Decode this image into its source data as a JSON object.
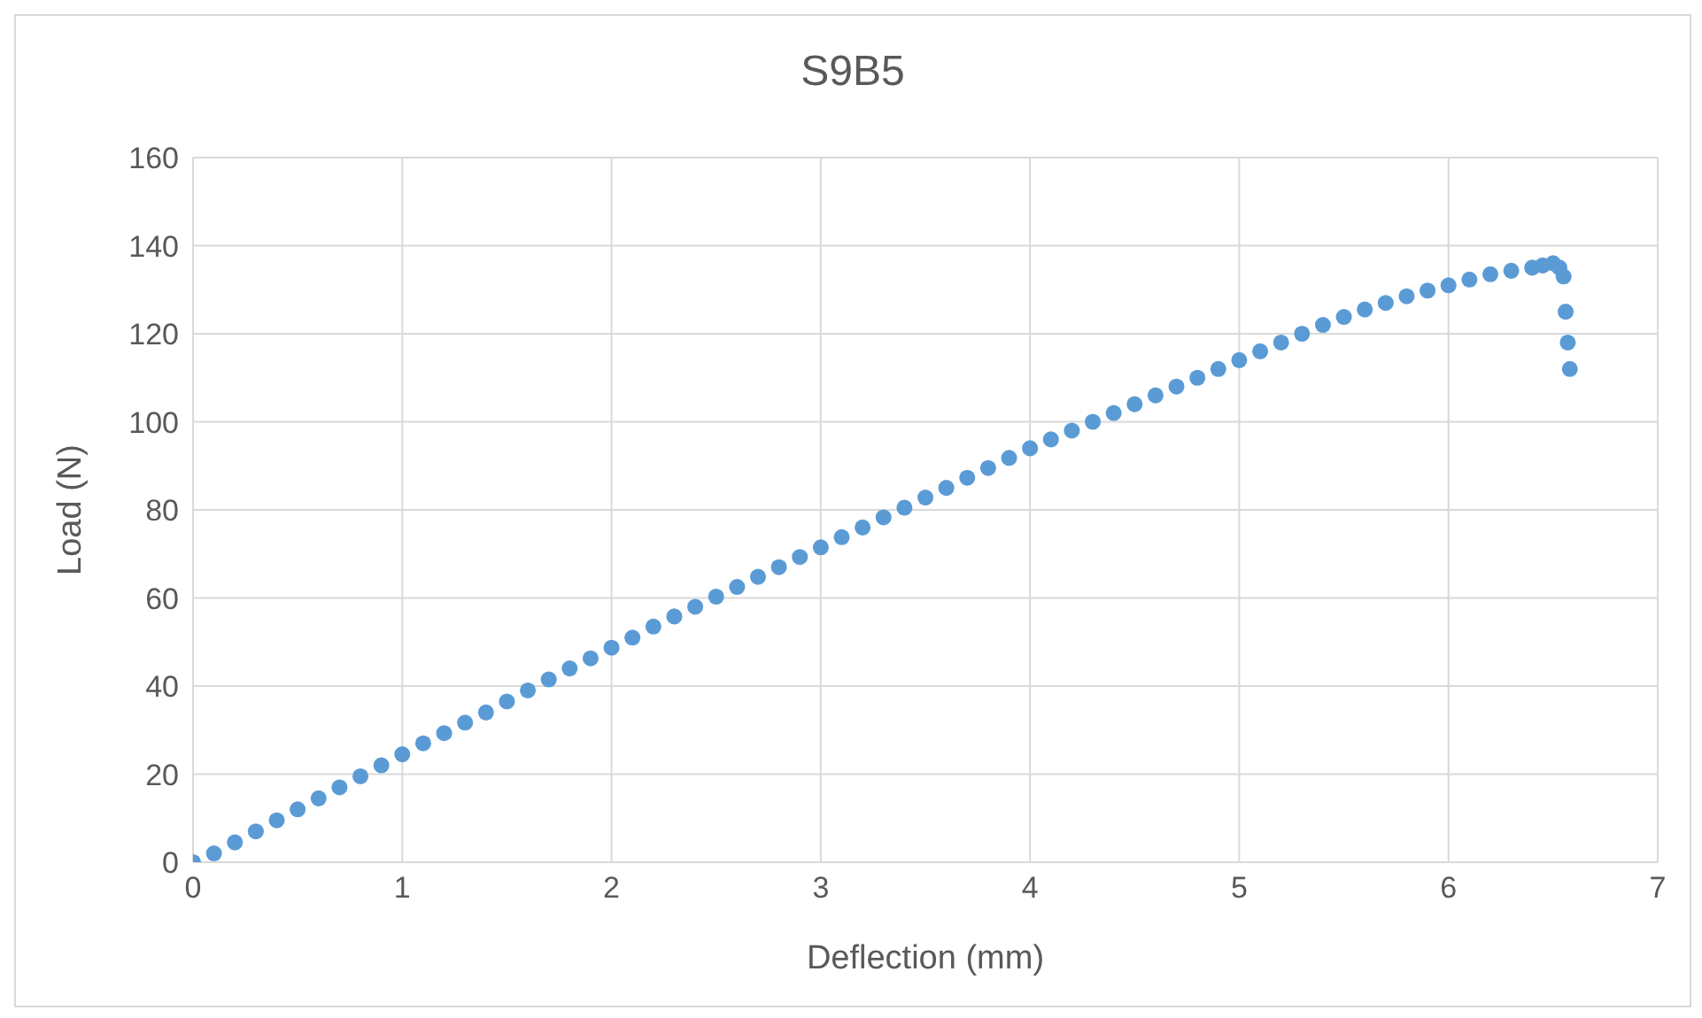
{
  "chart_data": {
    "type": "scatter",
    "title": "S9B5",
    "xlabel": "Deflection (mm)",
    "ylabel": "Load (N)",
    "x": [
      0,
      0.1,
      0.2,
      0.3,
      0.4,
      0.5,
      0.6,
      0.7,
      0.8,
      0.9,
      1,
      1.1,
      1.2,
      1.3,
      1.4,
      1.5,
      1.6,
      1.7,
      1.8,
      1.9,
      2,
      2.1,
      2.2,
      2.3,
      2.4,
      2.5,
      2.6,
      2.7,
      2.8,
      2.9,
      3,
      3.1,
      3.2,
      3.3,
      3.4,
      3.5,
      3.6,
      3.7,
      3.8,
      3.9,
      4,
      4.1,
      4.2,
      4.3,
      4.4,
      4.5,
      4.6,
      4.7,
      4.8,
      4.9,
      5,
      5.1,
      5.2,
      5.3,
      5.4,
      5.5,
      5.6,
      5.7,
      5.8,
      5.9,
      6,
      6.1,
      6.2,
      6.3,
      6.4,
      6.45,
      6.5,
      6.53,
      6.55,
      6.56,
      6.57,
      6.58
    ],
    "series": [
      {
        "color": "#5b9bd5",
        "values": [
          0,
          2,
          4.5,
          7,
          9.5,
          12,
          14.5,
          17,
          19.5,
          22,
          24.5,
          27,
          29.3,
          31.7,
          34,
          36.5,
          39,
          41.5,
          44,
          46.3,
          48.7,
          51,
          53.5,
          55.8,
          58,
          60.3,
          62.5,
          64.8,
          67,
          69.3,
          71.5,
          73.8,
          76,
          78.3,
          80.5,
          82.8,
          85,
          87.3,
          89.5,
          91.8,
          94,
          96,
          98,
          100,
          102,
          104,
          106,
          108,
          110,
          112,
          114,
          116,
          118,
          120,
          122,
          123.8,
          125.5,
          127,
          128.5,
          129.8,
          131,
          132.3,
          133.5,
          134.3,
          135,
          135.5,
          136,
          135,
          133,
          125,
          118,
          112
        ]
      }
    ],
    "xlim": [
      0,
      7
    ],
    "xticks": [
      0,
      1,
      2,
      3,
      4,
      5,
      6,
      7
    ],
    "ylim": [
      0,
      160
    ],
    "yticks": [
      0,
      20,
      40,
      60,
      80,
      100,
      120,
      140,
      160
    ],
    "grid": true,
    "marker": "circle"
  }
}
